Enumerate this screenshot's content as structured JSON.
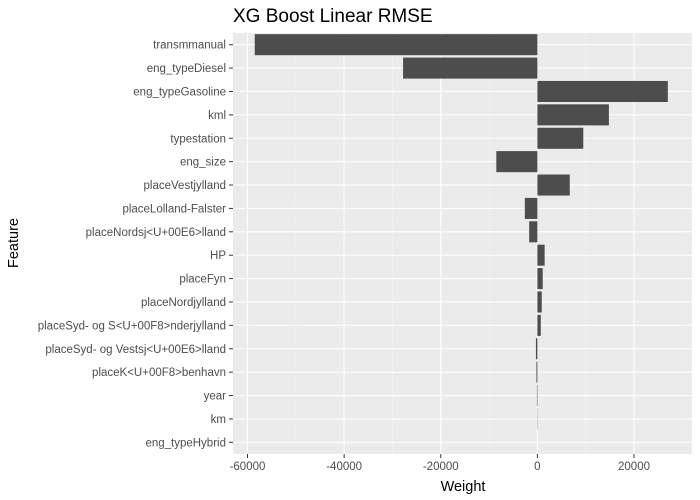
{
  "chart_data": {
    "type": "bar",
    "orientation": "horizontal",
    "title": "XG Boost Linear RMSE",
    "xlabel": "Weight",
    "ylabel": "Feature",
    "categories": [
      "transmmanual",
      "eng_typeDiesel",
      "eng_typeGasoline",
      "kml",
      "typestation",
      "eng_size",
      "placeVestjylland",
      "placeLolland-Falster",
      "placeNordsj<U+00E6>lland",
      "HP",
      "placeFyn",
      "placeNordjylland",
      "placeSyd- og S<U+00F8>nderjylland",
      "placeSyd- og Vestsj<U+00E6>lland",
      "placeK<U+00F8>benhavn",
      "year",
      "km",
      "eng_typeHybrid"
    ],
    "values": [
      -58500,
      -27800,
      27000,
      14800,
      9500,
      -8500,
      6700,
      -2600,
      -1700,
      1500,
      1100,
      900,
      700,
      -300,
      -200,
      -100,
      50,
      0
    ],
    "xlim": [
      -63000,
      32000
    ],
    "xticks": [
      -60000,
      -40000,
      -20000,
      0,
      20000
    ],
    "xtick_labels": [
      "-60000",
      "-40000",
      "-20000",
      "0",
      "20000"
    ],
    "grid": true,
    "colors": {
      "panel_background": "#ebebeb",
      "grid_major": "#ffffff",
      "grid_minor": "#f2f2f2",
      "bar": "#4d4d4d",
      "tick_text": "#4d4d4d",
      "text": "#000000"
    }
  }
}
